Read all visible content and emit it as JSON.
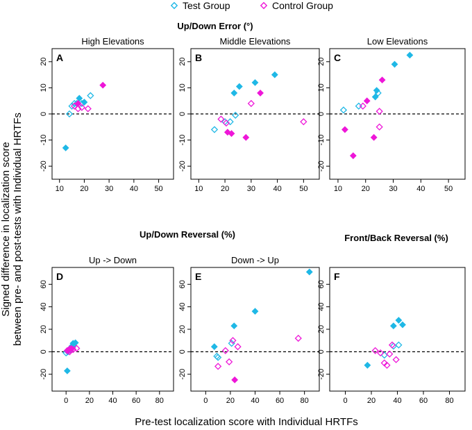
{
  "legend": {
    "test": "Test Group",
    "control": "Control Group"
  },
  "ylabel": [
    "Signed difference in localization score",
    "between pre- and post-tests with Individual HRTFs"
  ],
  "xlabel": "Pre-test localization score with Individual HRTFs",
  "sections": {
    "updown_error": "Up/Down Error (°)",
    "updown_reversal": "Up/Down Reversal (%)",
    "frontback_reversal": "Front/Back Reversal (%)"
  },
  "colors": {
    "test": "#1fb8e6",
    "control": "#ee17d8"
  },
  "chart_data": [
    {
      "id": "A",
      "type": "scatter",
      "title": "High Elevations",
      "xlim": [
        7,
        56
      ],
      "ylim": [
        -25,
        25
      ],
      "xticks": [
        10,
        20,
        30,
        40,
        50
      ],
      "yticks": [
        -20,
        -10,
        0,
        10,
        20
      ],
      "hline": 0,
      "series": [
        {
          "name": "Test Group",
          "filled": [
            [
              12.5,
              -13
            ],
            [
              18,
              6
            ],
            [
              20,
              4.5
            ]
          ],
          "open": [
            [
              14,
              0
            ],
            [
              15,
              3
            ],
            [
              16,
              4
            ],
            [
              17,
              4
            ],
            [
              19,
              4
            ],
            [
              22.5,
              7
            ]
          ]
        },
        {
          "name": "Control Group",
          "filled": [
            [
              17.5,
              4
            ],
            [
              27.5,
              11
            ]
          ],
          "open": [
            [
              16,
              3
            ],
            [
              17.5,
              2
            ],
            [
              19,
              2.5
            ],
            [
              21.5,
              2
            ]
          ]
        }
      ]
    },
    {
      "id": "B",
      "type": "scatter",
      "title": "Middle Elevations",
      "xlim": [
        7,
        56
      ],
      "ylim": [
        -25,
        25
      ],
      "xticks": [
        10,
        20,
        30,
        40,
        50
      ],
      "yticks": [
        -20,
        -10,
        0,
        10,
        20
      ],
      "hline": 0,
      "series": [
        {
          "name": "Test Group",
          "filled": [
            [
              23.5,
              8
            ],
            [
              25.5,
              10.5
            ],
            [
              31.5,
              12
            ],
            [
              39,
              15
            ]
          ],
          "open": [
            [
              16,
              -6
            ],
            [
              20,
              -3
            ],
            [
              22,
              -3
            ],
            [
              24,
              -0.5
            ]
          ]
        },
        {
          "name": "Control Group",
          "filled": [
            [
              21,
              -7
            ],
            [
              22.5,
              -7.5
            ],
            [
              28,
              -9
            ],
            [
              33.5,
              8
            ]
          ],
          "open": [
            [
              18.5,
              -2
            ],
            [
              20.5,
              -3.5
            ],
            [
              30,
              4
            ],
            [
              50,
              -3
            ]
          ]
        }
      ]
    },
    {
      "id": "C",
      "type": "scatter",
      "title": "Low Elevations",
      "xlim": [
        7,
        56
      ],
      "ylim": [
        -25,
        25
      ],
      "xticks": [
        10,
        20,
        30,
        40,
        50
      ],
      "yticks": [
        -20,
        -10,
        0,
        10,
        20
      ],
      "hline": 0,
      "series": [
        {
          "name": "Test Group",
          "filled": [
            [
              23.5,
              6.5
            ],
            [
              24,
              9
            ],
            [
              30.5,
              19
            ],
            [
              36,
              22.5
            ]
          ],
          "open": [
            [
              12,
              1.5
            ],
            [
              17.5,
              3
            ],
            [
              24.5,
              8
            ]
          ]
        },
        {
          "name": "Control Group",
          "filled": [
            [
              12.5,
              -6
            ],
            [
              15.5,
              -16
            ],
            [
              20.5,
              5
            ],
            [
              23,
              -9
            ],
            [
              26,
              13
            ]
          ],
          "open": [
            [
              19,
              3
            ],
            [
              25,
              1
            ],
            [
              25,
              -5
            ]
          ]
        }
      ]
    },
    {
      "id": "D",
      "type": "scatter",
      "title": "Up -> Down",
      "xlim": [
        -12,
        92
      ],
      "ylim": [
        -35,
        75
      ],
      "xticks": [
        0,
        20,
        40,
        60,
        80
      ],
      "yticks": [
        -20,
        0,
        20,
        40,
        60
      ],
      "hline": 0,
      "series": [
        {
          "name": "Test Group",
          "filled": [
            [
              1,
              -17
            ],
            [
              5,
              5
            ],
            [
              6,
              7.5
            ],
            [
              8,
              8
            ]
          ],
          "open": [
            [
              0,
              -1
            ],
            [
              1.5,
              0
            ],
            [
              2,
              1.5
            ],
            [
              3,
              2
            ],
            [
              4,
              3
            ],
            [
              5.5,
              4
            ]
          ]
        },
        {
          "name": "Control Group",
          "filled": [
            [
              2,
              1
            ],
            [
              3,
              2.5
            ],
            [
              4.5,
              3
            ]
          ],
          "open": [
            [
              1,
              1
            ],
            [
              3,
              0
            ],
            [
              4,
              1.5
            ],
            [
              6,
              2
            ],
            [
              9,
              3
            ]
          ]
        }
      ]
    },
    {
      "id": "E",
      "type": "scatter",
      "title": "Down -> Up",
      "xlim": [
        -12,
        92
      ],
      "ylim": [
        -35,
        75
      ],
      "xticks": [
        0,
        20,
        40,
        60,
        80
      ],
      "yticks": [
        -20,
        0,
        20,
        40,
        60
      ],
      "hline": 0,
      "series": [
        {
          "name": "Test Group",
          "filled": [
            [
              7,
              4.5
            ],
            [
              23,
              23
            ],
            [
              40,
              36
            ],
            [
              84,
              71
            ]
          ],
          "open": [
            [
              9,
              -4
            ],
            [
              10,
              -5
            ],
            [
              21,
              7.5
            ]
          ]
        },
        {
          "name": "Control Group",
          "filled": [
            [
              23.5,
              -25
            ]
          ],
          "open": [
            [
              10,
              -13
            ],
            [
              16,
              1
            ],
            [
              19,
              -9
            ],
            [
              22,
              10
            ],
            [
              26,
              4.5
            ],
            [
              75,
              12
            ]
          ]
        }
      ]
    },
    {
      "id": "F",
      "type": "scatter",
      "title": "",
      "xlim": [
        -12,
        92
      ],
      "ylim": [
        -35,
        75
      ],
      "xticks": [
        0,
        20,
        40,
        60,
        80
      ],
      "yticks": [
        -20,
        0,
        20,
        40,
        60
      ],
      "hline": 0,
      "series": [
        {
          "name": "Test Group",
          "filled": [
            [
              17,
              -12
            ],
            [
              37,
              23
            ],
            [
              41,
              28
            ],
            [
              44,
              24
            ]
          ],
          "open": [
            [
              30,
              -3
            ],
            [
              37,
              5
            ],
            [
              41,
              6
            ]
          ]
        },
        {
          "name": "Control Group",
          "filled": [],
          "open": [
            [
              23,
              1
            ],
            [
              27,
              -1
            ],
            [
              30,
              -10
            ],
            [
              32,
              -12
            ],
            [
              34,
              -2
            ],
            [
              36,
              6
            ],
            [
              39,
              -7
            ]
          ]
        }
      ]
    }
  ]
}
